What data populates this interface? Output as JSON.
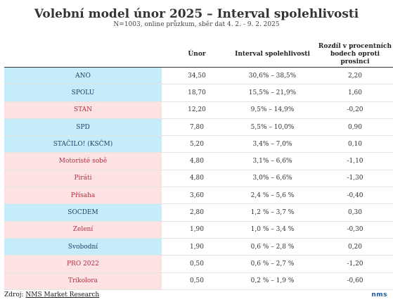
{
  "title": "Volební model únor 2025 – Interval spolehlivosti",
  "subtitle": "N=1003, online průzkum, sběr dat 4. 2. - 9. 2. 2025",
  "headers": {
    "unor": "Únor",
    "interval": "Interval spolehlivosti",
    "diff": "Rozdíl v procentních bodech oproti prosinci"
  },
  "colors": {
    "blue": "#c5ecf8",
    "pink": "#fde2e4",
    "pink_text": "#b03040",
    "blue_text": "#1f3f6a"
  },
  "rows": [
    {
      "party": "ANO",
      "unor": "34,50",
      "interval": "30,6% – 38,5%",
      "diff": "2,20",
      "tone": "blue"
    },
    {
      "party": "SPOLU",
      "unor": "18,70",
      "interval": "15,5% – 21,9%",
      "diff": "1,60",
      "tone": "blue"
    },
    {
      "party": "STAN",
      "unor": "12,20",
      "interval": "9,5% – 14,9%",
      "diff": "-0,20",
      "tone": "pink"
    },
    {
      "party": "SPD",
      "unor": "7,80",
      "interval": "5,5% – 10,0%",
      "diff": "0,90",
      "tone": "blue"
    },
    {
      "party": "STAČILO! (KSČM)",
      "unor": "5,20",
      "interval": "3,4% – 7,0%",
      "diff": "0,10",
      "tone": "blue"
    },
    {
      "party": "Motoristé sobě",
      "unor": "4,80",
      "interval": "3,1% – 6,6%",
      "diff": "-1,10",
      "tone": "pink"
    },
    {
      "party": "Piráti",
      "unor": "4,80",
      "interval": "3,0% – 6,6%",
      "diff": "-1,30",
      "tone": "pink"
    },
    {
      "party": "Přísaha",
      "unor": "3,60",
      "interval": "2,4 % – 5,6 %",
      "diff": "-0,40",
      "tone": "pink"
    },
    {
      "party": "SOCDEM",
      "unor": "2,80",
      "interval": "1,2 % – 3,7 %",
      "diff": "0,30",
      "tone": "blue"
    },
    {
      "party": "Zelení",
      "unor": "1,90",
      "interval": "1,0 % – 3,4 %",
      "diff": "-0,30",
      "tone": "pink"
    },
    {
      "party": "Svobodní",
      "unor": "1,90",
      "interval": "0,6 % – 2,8 %",
      "diff": "0,20",
      "tone": "blue"
    },
    {
      "party": "PRO 2022",
      "unor": "0,50",
      "interval": "0,6 % – 2,7 %",
      "diff": "-1,20",
      "tone": "pink"
    },
    {
      "party": "Trikolora",
      "unor": "0,50",
      "interval": "0,2 % – 1,9 %",
      "diff": "-0,60",
      "tone": "pink"
    }
  ],
  "footer": {
    "prefix": "Zdroj: ",
    "source": "NMS Market Research"
  },
  "logo": "nms"
}
